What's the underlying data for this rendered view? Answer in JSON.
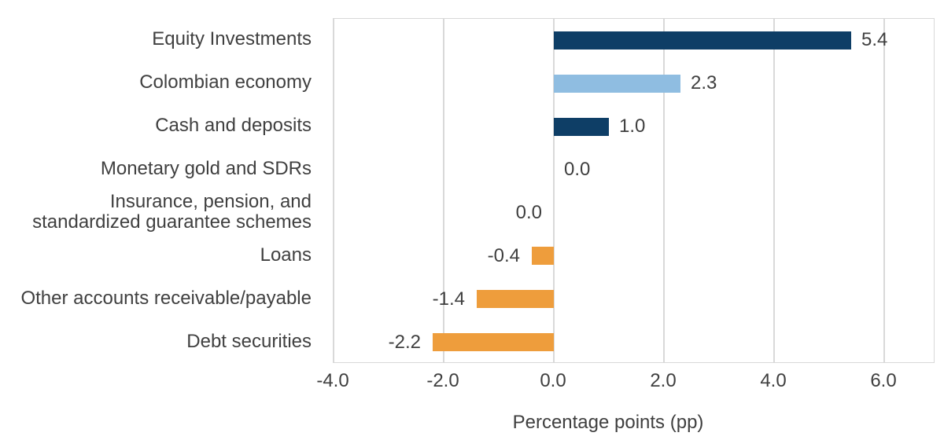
{
  "chart_data": {
    "type": "bar",
    "orientation": "horizontal",
    "title": "",
    "xlabel": "Percentage points (pp)",
    "ylabel": "",
    "categories": [
      "Equity Investments",
      "Colombian economy",
      "Cash and deposits",
      "Monetary gold and SDRs",
      "Insurance, pension, and\nstandardized guarantee schemes",
      "Loans",
      "Other accounts receivable/payable",
      "Debt securities"
    ],
    "values": [
      5.4,
      2.3,
      1.0,
      0.0,
      0.0,
      -0.4,
      -1.4,
      -2.2
    ],
    "value_labels": [
      "5.4",
      "2.3",
      "1.0",
      "0.0",
      "0.0",
      "-0.4",
      "-1.4",
      "-2.2"
    ],
    "value_label_side": [
      "right",
      "right",
      "right",
      "right",
      "left",
      "left",
      "left",
      "left"
    ],
    "bar_colors": [
      "#0e3e66",
      "#8fbde1",
      "#0e3e66",
      null,
      null,
      "#ee9d3c",
      "#ee9d3c",
      "#ee9d3c"
    ],
    "x_ticks": [
      -4.0,
      -2.0,
      0.0,
      2.0,
      4.0,
      6.0
    ],
    "x_tick_labels": [
      "-4.0",
      "-2.0",
      "0.0",
      "2.0",
      "4.0",
      "6.0"
    ],
    "xlim": [
      -4.0,
      6.93
    ],
    "grid": "vertical",
    "legend": "none",
    "colors": {
      "dark_blue": "#0e3e66",
      "light_blue": "#8fbde1",
      "orange": "#ee9d3c",
      "gridline": "#d9d9d9",
      "plot_border": "#d8d8d8",
      "text": "#3f3f3f",
      "background": "#ffffff"
    }
  }
}
